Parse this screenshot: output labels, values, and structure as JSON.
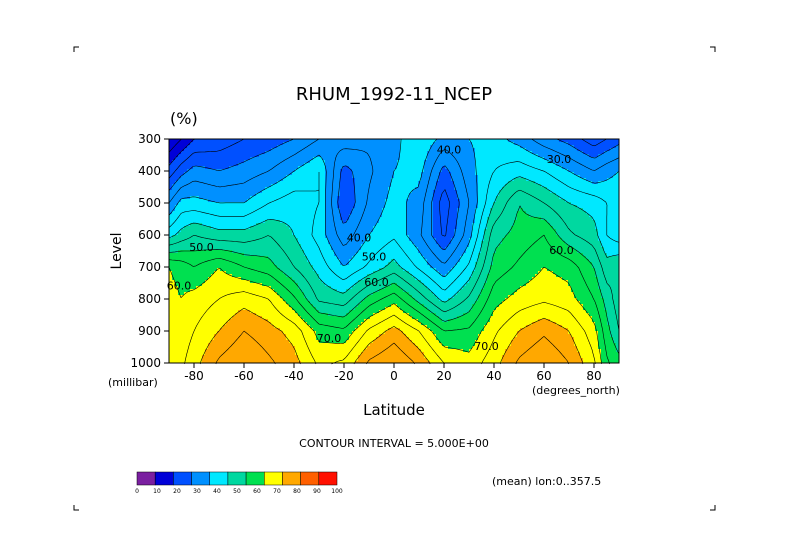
{
  "chart_data": {
    "type": "heatmap",
    "title": "RHUM_1992-11_NCEP",
    "units_label": "(%)",
    "xlabel": "Latitude",
    "ylabel": "Level",
    "y_unit_label": "(millibar)",
    "x_unit_label": "(degrees_north)",
    "xlim": [
      -90,
      90
    ],
    "ylim": [
      1000,
      300
    ],
    "x_ticks": [
      -80,
      -60,
      -40,
      -20,
      0,
      20,
      40,
      60,
      80
    ],
    "x_tick_labels": [
      "-80",
      "-60",
      "-40",
      "-20",
      "0",
      "20",
      "40",
      "60",
      "80"
    ],
    "y_ticks": [
      300,
      400,
      500,
      600,
      700,
      800,
      900,
      1000
    ],
    "y_tick_labels": [
      "300",
      "400",
      "500",
      "600",
      "700",
      "800",
      "900",
      "1000"
    ],
    "contour_interval_text": "CONTOUR INTERVAL = 5.000E+00",
    "mean_text": "(mean) lon:0..357.5",
    "colorbar": {
      "levels": [
        0,
        10,
        20,
        30,
        40,
        50,
        60,
        70,
        80,
        90,
        100
      ],
      "level_labels": [
        "0",
        "10",
        "20",
        "30",
        "40",
        "50",
        "60",
        "70",
        "80",
        "90",
        "100"
      ],
      "colors": [
        "#7a1fa0",
        "#0000d8",
        "#0050ff",
        "#0090ff",
        "#00e8ff",
        "#00d8a0",
        "#00e050",
        "#ffff00",
        "#ffa800",
        "#ff6000",
        "#ff1000"
      ]
    },
    "contour_labels": [
      {
        "text": "40.0",
        "lat": 22,
        "lev": 345
      },
      {
        "text": "30.0",
        "lat": 66,
        "lev": 375
      },
      {
        "text": "40.0",
        "lat": -14,
        "lev": 620
      },
      {
        "text": "50.0",
        "lat": -8,
        "lev": 680
      },
      {
        "text": "60.0",
        "lat": -7,
        "lev": 760
      },
      {
        "text": "70.0",
        "lat": -26,
        "lev": 935
      },
      {
        "text": "70.0",
        "lat": 37,
        "lev": 960
      },
      {
        "text": "50.0",
        "lat": -77,
        "lev": 650
      },
      {
        "text": "60.0",
        "lat": -86,
        "lev": 770
      },
      {
        "text": "60.0",
        "lat": 67,
        "lev": 660
      }
    ],
    "lats": [
      -90,
      -85,
      -80,
      -70,
      -60,
      -50,
      -40,
      -30,
      -20,
      -10,
      0,
      10,
      20,
      30,
      40,
      50,
      60,
      70,
      80,
      85,
      90
    ],
    "levels_hpa": [
      300,
      400,
      500,
      600,
      700,
      800,
      900,
      1000
    ],
    "values": [
      [
        10,
        15,
        20,
        22,
        25,
        27,
        30,
        35,
        38,
        36,
        38,
        45,
        38,
        40,
        42,
        38,
        32,
        28,
        22,
        25,
        28
      ],
      [
        22,
        28,
        32,
        30,
        32,
        35,
        40,
        45,
        28,
        34,
        40,
        42,
        28,
        38,
        45,
        48,
        45,
        40,
        35,
        38,
        40
      ],
      [
        35,
        42,
        42,
        40,
        40,
        45,
        48,
        45,
        25,
        36,
        42,
        38,
        22,
        35,
        50,
        60,
        55,
        50,
        48,
        45,
        45
      ],
      [
        48,
        52,
        55,
        52,
        52,
        55,
        50,
        43,
        32,
        40,
        44,
        36,
        24,
        38,
        58,
        62,
        65,
        56,
        52,
        45,
        42
      ],
      [
        70,
        68,
        65,
        70,
        65,
        62,
        55,
        48,
        40,
        46,
        52,
        44,
        36,
        46,
        62,
        66,
        70,
        68,
        60,
        52,
        55
      ],
      [
        72,
        70,
        72,
        75,
        78,
        75,
        66,
        54,
        52,
        62,
        68,
        58,
        48,
        56,
        68,
        72,
        74,
        72,
        65,
        58,
        52
      ],
      [
        70,
        72,
        75,
        80,
        85,
        82,
        78,
        68,
        66,
        76,
        82,
        75,
        65,
        66,
        74,
        80,
        84,
        80,
        72,
        62,
        55
      ],
      [
        70,
        74,
        78,
        86,
        90,
        86,
        82,
        74,
        76,
        86,
        90,
        84,
        75,
        72,
        78,
        86,
        90,
        85,
        76,
        66,
        62
      ]
    ]
  }
}
